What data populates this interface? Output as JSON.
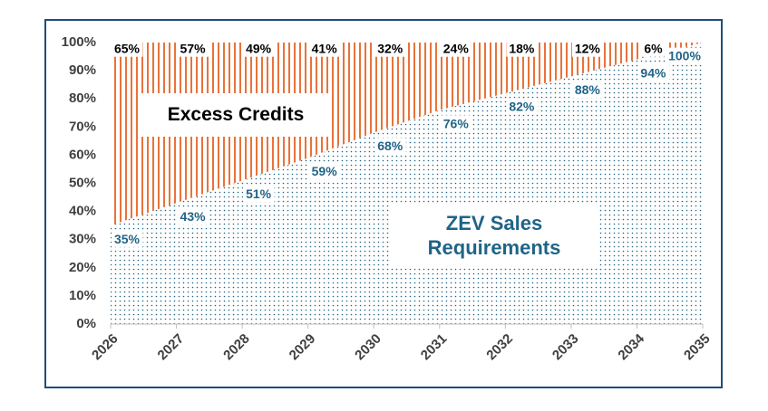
{
  "chart_data": {
    "type": "area",
    "stacked": true,
    "categories": [
      "2026",
      "2027",
      "2028",
      "2029",
      "2030",
      "2031",
      "2032",
      "2033",
      "2034",
      "2035"
    ],
    "series": [
      {
        "name": "ZEV Sales Requirements",
        "color": "#1f6487",
        "pattern": "dots",
        "values": [
          35,
          43,
          51,
          59,
          68,
          76,
          82,
          88,
          94,
          100
        ],
        "value_labels": [
          "35%",
          "43%",
          "51%",
          "59%",
          "68%",
          "76%",
          "82%",
          "88%",
          "94%",
          "100%"
        ]
      },
      {
        "name": "Excess Credits",
        "color": "#e8733a",
        "pattern": "stripes",
        "values": [
          65,
          57,
          49,
          41,
          32,
          24,
          18,
          12,
          6,
          0
        ],
        "value_labels": [
          "65%",
          "57%",
          "49%",
          "41%",
          "32%",
          "24%",
          "18%",
          "12%",
          "6%",
          null
        ]
      }
    ],
    "ylim": [
      0,
      100
    ],
    "yticks": [
      {
        "value": 0,
        "label": "0%"
      },
      {
        "value": 10,
        "label": "10%"
      },
      {
        "value": 20,
        "label": "20%"
      },
      {
        "value": 30,
        "label": "30%"
      },
      {
        "value": 40,
        "label": "40%"
      },
      {
        "value": 50,
        "label": "50%"
      },
      {
        "value": 60,
        "label": "60%"
      },
      {
        "value": 70,
        "label": "70%"
      },
      {
        "value": 80,
        "label": "80%"
      },
      {
        "value": 90,
        "label": "90%"
      },
      {
        "value": 100,
        "label": "100%"
      }
    ],
    "grid": false
  }
}
